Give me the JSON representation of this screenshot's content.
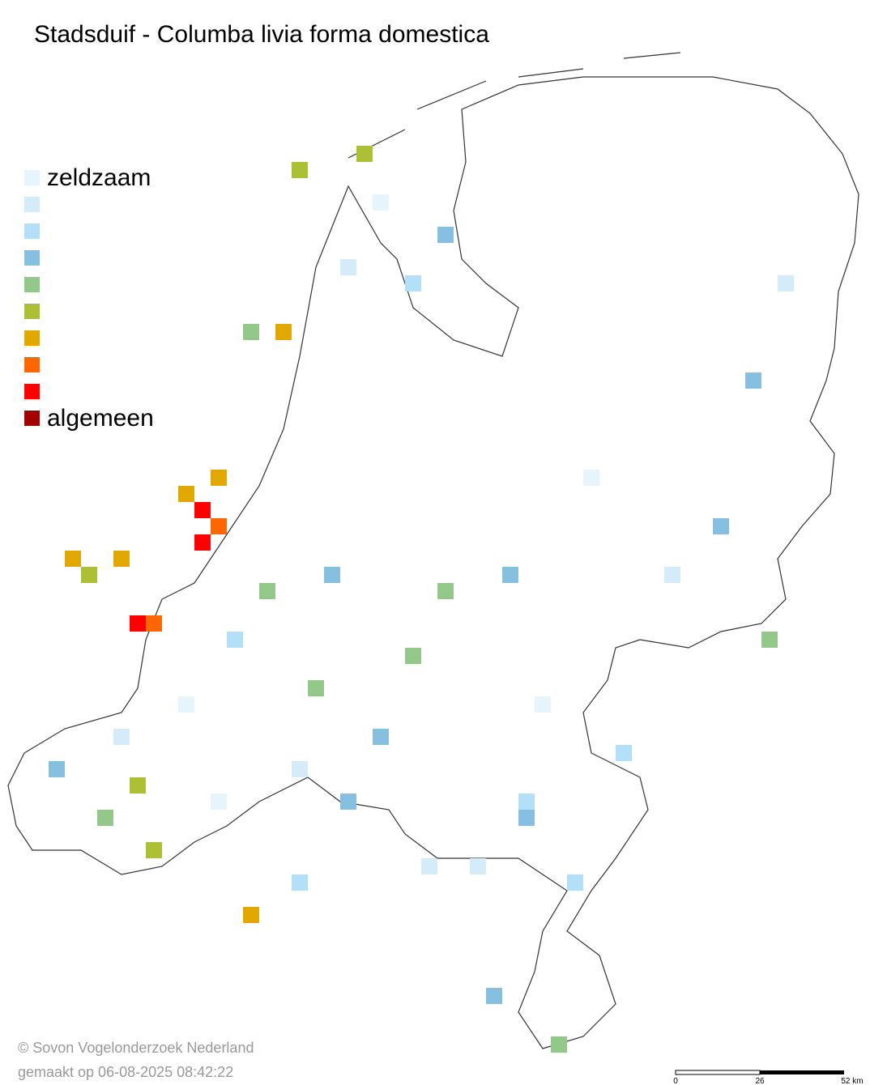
{
  "map": {
    "title": "Stadsduif - Columba livia forma domestica",
    "legend": {
      "labels": [
        "zeldzaam",
        null,
        null,
        null,
        null,
        null,
        null,
        null,
        null,
        "algemeen"
      ],
      "colors": [
        "#e6f4fc",
        "#d4ecfa",
        "#b3e0f8",
        "#86bfe0",
        "#94c88a",
        "#acbf35",
        "#e0a800",
        "#ff6600",
        "#ff0000",
        "#a50000"
      ]
    },
    "credits": [
      "© Sovon Vogelonderzoek Nederland",
      "gemaakt op 06-08-2025 08:42:22"
    ],
    "scale_bar": [
      "0",
      "26",
      "52 km"
    ]
  }
}
